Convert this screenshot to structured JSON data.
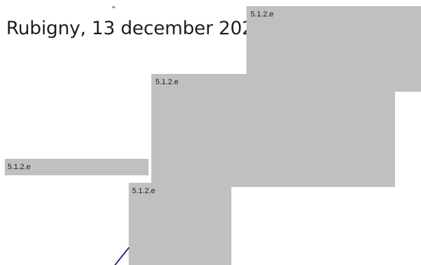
{
  "document": {
    "date_line": "Rubigny, 13 december 2020",
    "caret_mark": "ˆ"
  },
  "redactions": [
    {
      "label": "5.1.2.e"
    },
    {
      "label": "5.1.2.e"
    },
    {
      "label": "5.1.2.e"
    },
    {
      "label": "5.1.2.e"
    }
  ],
  "colors": {
    "redaction_fill": "#c0c0c0",
    "pen_stroke": "#2a2a8c"
  }
}
